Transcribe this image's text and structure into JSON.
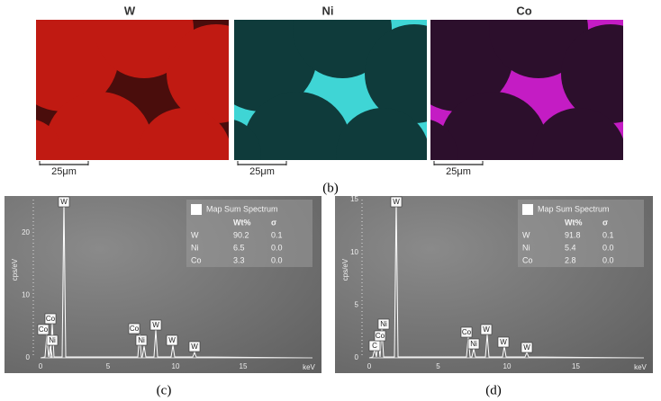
{
  "maps": [
    {
      "label": "W",
      "scale": "25μm"
    },
    {
      "label": "Ni",
      "scale": "25μm"
    },
    {
      "label": "Co",
      "scale": "25μm"
    }
  ],
  "panel_b": "(b)",
  "spectra": [
    {
      "panel": "(c)",
      "y_label": "cps/eV",
      "x_label": "keV",
      "xticks": [
        "0",
        "5",
        "10",
        "15"
      ],
      "yticks": [
        "0",
        "10",
        "20"
      ],
      "legend_title": "Map Sum Spectrum",
      "table": {
        "header": [
          "Wt%",
          "σ"
        ],
        "rows": [
          [
            "W",
            "90.2",
            "0.1"
          ],
          [
            "Ni",
            "6.5",
            "0.0"
          ],
          [
            "Co",
            "3.3",
            "0.0"
          ]
        ]
      },
      "peaks": [
        "W",
        "Co",
        "Co",
        "Ni",
        "Co",
        "Ni",
        "W",
        "W",
        "W"
      ]
    },
    {
      "panel": "(d)",
      "y_label": "cps/eV",
      "x_label": "keV",
      "xticks": [
        "0",
        "5",
        "10",
        "15"
      ],
      "yticks": [
        "0",
        "5",
        "10",
        "15"
      ],
      "legend_title": "Map Sum Spectrum",
      "table": {
        "header": [
          "Wt%",
          "σ"
        ],
        "rows": [
          [
            "W",
            "91.8",
            "0.1"
          ],
          [
            "Ni",
            "5.4",
            "0.0"
          ],
          [
            "Co",
            "2.8",
            "0.0"
          ]
        ]
      },
      "peaks": [
        "W",
        "Ni",
        "C",
        "Co",
        "Co",
        "Ni",
        "W",
        "W",
        "W"
      ]
    }
  ]
}
